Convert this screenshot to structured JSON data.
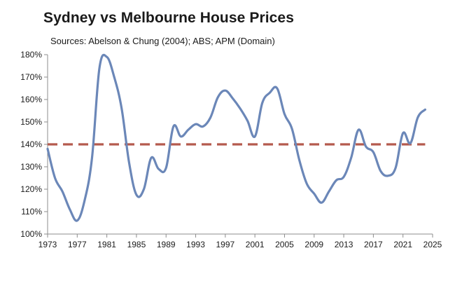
{
  "chart_data": {
    "type": "line",
    "title": "Sydney vs Melbourne House Prices",
    "subtitle": "Sources: Abelson & Chung (2004); ABS; APM (Domain)",
    "xlabel": "",
    "ylabel": "",
    "xlim": [
      1973,
      2025
    ],
    "ylim": [
      100,
      180
    ],
    "x_ticks": [
      1973,
      1977,
      1981,
      1985,
      1989,
      1993,
      1997,
      2001,
      2005,
      2009,
      2013,
      2017,
      2021,
      2025
    ],
    "y_ticks": [
      100,
      110,
      120,
      130,
      140,
      150,
      160,
      170,
      180
    ],
    "y_tick_labels": [
      "100%",
      "110%",
      "120%",
      "130%",
      "140%",
      "150%",
      "160%",
      "170%",
      "180%"
    ],
    "grid": false,
    "legend": "none",
    "series": [
      {
        "color": "#6b87b8",
        "x": [
          1973,
          1974,
          1975,
          1976,
          1977,
          1978,
          1979,
          1980,
          1981,
          1982,
          1983,
          1984,
          1985,
          1986,
          1987,
          1988,
          1989,
          1990,
          1991,
          1992,
          1993,
          1994,
          1995,
          1996,
          1997,
          1998,
          1999,
          2000,
          2001,
          2002,
          2003,
          2004,
          2005,
          2006,
          2007,
          2008,
          2009,
          2010,
          2011,
          2012,
          2013,
          2014,
          2015,
          2016,
          2017,
          2018,
          2019,
          2020,
          2021,
          2022,
          2023,
          2024
        ],
        "values": [
          138,
          125,
          119,
          111,
          106,
          115,
          134,
          174,
          179,
          170,
          156,
          132,
          117.5,
          120,
          134,
          129,
          129.5,
          148,
          143.5,
          146.5,
          149,
          148,
          152,
          161,
          164,
          160.5,
          156,
          150.5,
          143.5,
          158.5,
          163,
          165,
          153.5,
          147,
          133,
          122.5,
          118,
          114,
          119,
          124,
          125.5,
          134,
          146.5,
          139,
          136.5,
          128,
          126,
          129.5,
          145,
          140.5,
          152,
          155.5
        ]
      }
    ],
    "reference_lines": [
      {
        "y": 140,
        "color": "#b55a4d",
        "style": "dashed"
      }
    ]
  }
}
